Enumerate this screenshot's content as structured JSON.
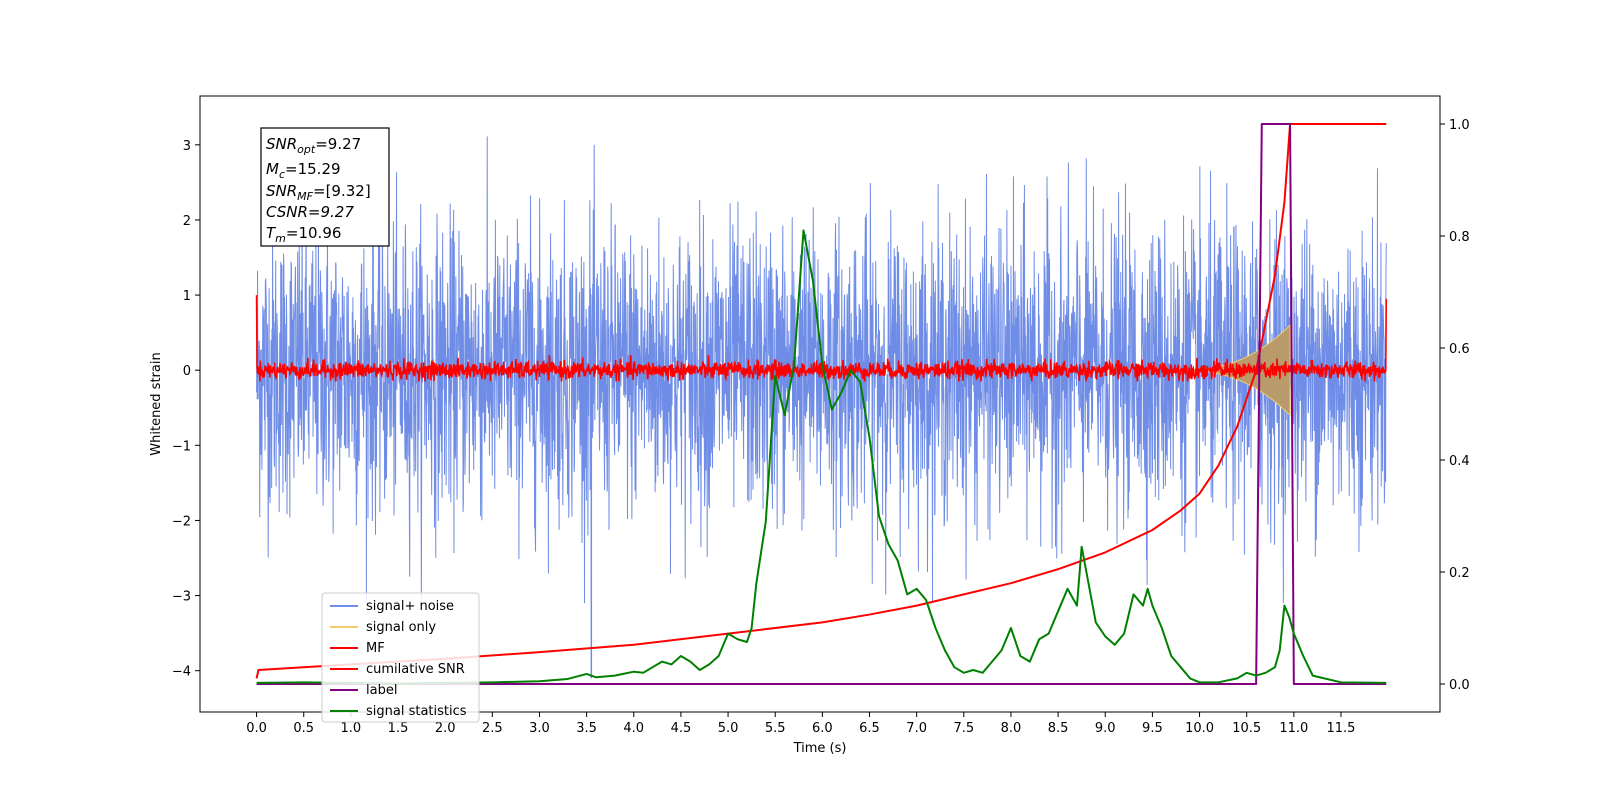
{
  "chart_data": {
    "type": "line",
    "xlabel": "Time (s)",
    "ylabel": "Whitened strain",
    "xlim": [
      -0.6,
      12.55
    ],
    "ylim": [
      -4.55,
      3.65
    ],
    "ylim_right": [
      -0.05,
      1.05
    ],
    "x_ticks": [
      0.0,
      0.5,
      1.0,
      1.5,
      2.0,
      2.5,
      3.0,
      3.5,
      4.0,
      4.5,
      5.0,
      5.5,
      6.0,
      6.5,
      7.0,
      7.5,
      8.0,
      8.5,
      9.0,
      9.5,
      10.0,
      10.5,
      11.0,
      11.5
    ],
    "x_tick_labels": [
      "0.0",
      "0.5",
      "1.0",
      "1.5",
      "2.0",
      "2.5",
      "3.0",
      "3.5",
      "4.0",
      "4.5",
      "5.0",
      "5.5",
      "6.0",
      "6.5",
      "7.0",
      "7.5",
      "8.0",
      "8.5",
      "9.0",
      "9.5",
      "10.0",
      "10.5",
      "11.0",
      "11.5"
    ],
    "y_ticks": [
      -4,
      -3,
      -2,
      -1,
      0,
      1,
      2,
      3
    ],
    "y_tick_labels": [
      "−4",
      "−3",
      "−2",
      "−1",
      "0",
      "1",
      "2",
      "3"
    ],
    "y_right_ticks": [
      0.0,
      0.2,
      0.4,
      0.6,
      0.8,
      1.0
    ],
    "y_right_tick_labels": [
      "0.0",
      "0.2",
      "0.4",
      "0.6",
      "0.8",
      "1.0"
    ],
    "grid": false,
    "legend_position": "lower-left",
    "colors": {
      "noise": "#6f8de6",
      "signal": "#f5cd6e",
      "signal_overlap": "#b99a6a",
      "mf": "#ff0000",
      "csnr": "#ff0000",
      "label": "#800080",
      "stats": "#008000"
    },
    "info_box": {
      "snr_opt": "=9.27",
      "mc": "=15.29",
      "snr_mf": "=[9.32]",
      "csnr": "CSNR=9.27",
      "tm": "=10.96"
    },
    "series": [
      {
        "name": "signal+ noise",
        "axis": "left",
        "kind": "noise",
        "amplitude_range": [
          -3.1,
          3.3
        ],
        "x_range": [
          0.0,
          11.98
        ]
      },
      {
        "name": "signal only",
        "axis": "left",
        "kind": "chirp",
        "x_range": [
          9.8,
          10.96
        ],
        "peak_amplitude": 0.6
      },
      {
        "name": "MF",
        "axis": "left",
        "kind": "noise",
        "amplitude_range": [
          -0.15,
          0.2
        ],
        "x_range": [
          0.0,
          11.98
        ],
        "edge_values": [
          1.0,
          0.95
        ]
      },
      {
        "name": "cumilative SNR",
        "axis": "right",
        "x": [
          0.0,
          0.02,
          1.0,
          2.0,
          3.0,
          4.0,
          5.0,
          6.0,
          6.5,
          7.0,
          7.5,
          8.0,
          8.5,
          9.0,
          9.5,
          9.8,
          10.0,
          10.2,
          10.4,
          10.6,
          10.8,
          10.9,
          10.96,
          11.98
        ],
        "y": [
          0.01,
          0.025,
          0.035,
          0.045,
          0.057,
          0.07,
          0.09,
          0.11,
          0.124,
          0.14,
          0.16,
          0.18,
          0.205,
          0.235,
          0.275,
          0.31,
          0.34,
          0.39,
          0.46,
          0.56,
          0.73,
          0.86,
          1.0,
          1.0
        ]
      },
      {
        "name": "label",
        "axis": "right",
        "x": [
          0.0,
          10.6,
          10.66,
          10.96,
          11.0,
          11.98
        ],
        "y": [
          0.0,
          0.0,
          1.0,
          1.0,
          0.0,
          0.0
        ]
      },
      {
        "name": "signal statistics",
        "axis": "right",
        "x": [
          0.0,
          0.5,
          1.0,
          1.5,
          2.0,
          2.5,
          3.0,
          3.3,
          3.5,
          3.6,
          3.8,
          4.0,
          4.1,
          4.2,
          4.3,
          4.4,
          4.5,
          4.6,
          4.7,
          4.8,
          4.9,
          5.0,
          5.1,
          5.2,
          5.25,
          5.3,
          5.4,
          5.5,
          5.6,
          5.7,
          5.8,
          5.9,
          6.0,
          6.1,
          6.2,
          6.3,
          6.4,
          6.5,
          6.6,
          6.7,
          6.8,
          6.9,
          7.0,
          7.1,
          7.2,
          7.3,
          7.4,
          7.5,
          7.6,
          7.7,
          7.8,
          7.9,
          8.0,
          8.1,
          8.2,
          8.3,
          8.4,
          8.5,
          8.6,
          8.7,
          8.75,
          8.8,
          8.9,
          9.0,
          9.1,
          9.2,
          9.3,
          9.4,
          9.45,
          9.5,
          9.6,
          9.7,
          9.8,
          9.9,
          10.0,
          10.2,
          10.4,
          10.5,
          10.6,
          10.7,
          10.8,
          10.85,
          10.9,
          10.95,
          11.0,
          11.1,
          11.2,
          11.5,
          11.98
        ],
        "y": [
          0.002,
          0.003,
          0.002,
          0.001,
          0.002,
          0.003,
          0.005,
          0.009,
          0.018,
          0.012,
          0.015,
          0.022,
          0.02,
          0.03,
          0.04,
          0.035,
          0.05,
          0.04,
          0.025,
          0.035,
          0.05,
          0.09,
          0.08,
          0.075,
          0.1,
          0.18,
          0.29,
          0.55,
          0.48,
          0.57,
          0.81,
          0.72,
          0.57,
          0.49,
          0.52,
          0.56,
          0.54,
          0.44,
          0.3,
          0.25,
          0.22,
          0.16,
          0.17,
          0.15,
          0.1,
          0.06,
          0.03,
          0.02,
          0.025,
          0.02,
          0.04,
          0.06,
          0.1,
          0.05,
          0.04,
          0.08,
          0.09,
          0.13,
          0.17,
          0.14,
          0.245,
          0.2,
          0.11,
          0.085,
          0.07,
          0.09,
          0.16,
          0.14,
          0.17,
          0.14,
          0.1,
          0.05,
          0.03,
          0.01,
          0.003,
          0.003,
          0.01,
          0.02,
          0.015,
          0.02,
          0.03,
          0.06,
          0.14,
          0.12,
          0.09,
          0.05,
          0.015,
          0.003,
          0.002
        ]
      }
    ]
  }
}
